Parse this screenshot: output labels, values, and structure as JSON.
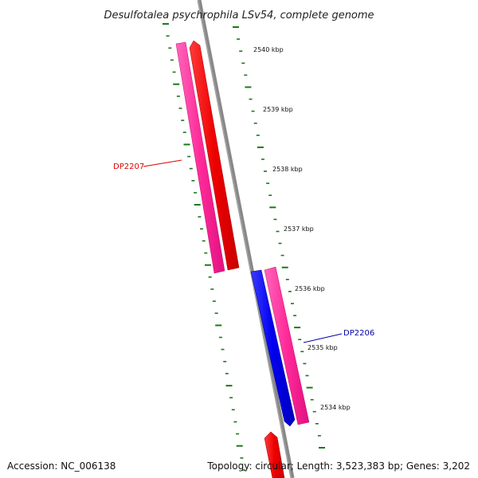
{
  "title": "Desulfotalea psychrophila LSv54, complete genome",
  "footer": {
    "accession": "Accession: NC_006138",
    "info": "Topology: circular; Length: 3,523,383 bp; Genes: 3,202"
  },
  "ticks": [
    {
      "label": "2540 kbp"
    },
    {
      "label": "2539 kbp"
    },
    {
      "label": "2538 kbp"
    },
    {
      "label": "2537 kbp"
    },
    {
      "label": "2536 kbp"
    },
    {
      "label": "2535 kbp"
    },
    {
      "label": "2534 kbp"
    }
  ],
  "genes": [
    {
      "label": "DP2207",
      "color": "#dd0000"
    },
    {
      "label": "DP2206",
      "color": "#0000aa"
    }
  ],
  "colors": {
    "backbone": "#888888",
    "tick": "#1a7a1a",
    "forward_cds": "#ee0000",
    "reverse_cds": "#0000ee",
    "gene_region": "#ff3399"
  }
}
